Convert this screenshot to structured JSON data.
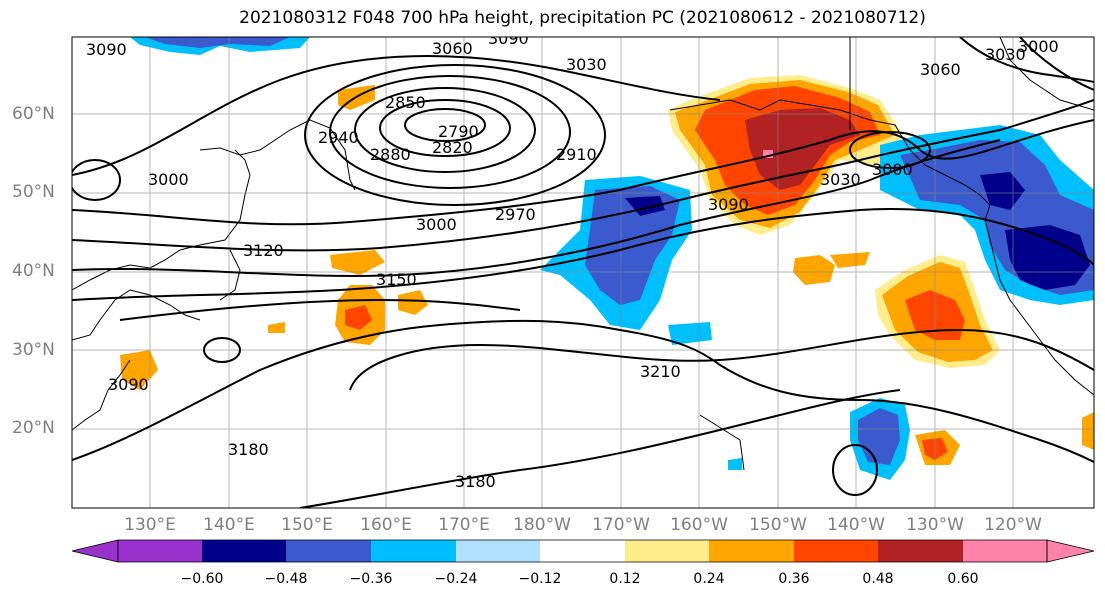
{
  "title": "2021080312 F048 700 hPa height, precipitation PC (2021080612 - 2021080712)",
  "map": {
    "region": "North Pacific",
    "lat_labels": [
      "60°N",
      "50°N",
      "40°N",
      "30°N",
      "20°N"
    ],
    "lon_labels": [
      "130°E",
      "140°E",
      "150°E",
      "160°E",
      "170°E",
      "180°W",
      "170°W",
      "160°W",
      "150°W",
      "140°W",
      "130°W",
      "120°W"
    ],
    "grid": true
  },
  "contours": {
    "variable": "700 hPa height",
    "labels": [
      "3090",
      "3060",
      "3090",
      "3030",
      "3060",
      "3030",
      "3000",
      "3000",
      "2850",
      "2790",
      "2820",
      "2940",
      "2880",
      "2910",
      "3000",
      "2970",
      "3090",
      "3030",
      "3000",
      "3120",
      "3150",
      "3090",
      "3210",
      "3180",
      "3180"
    ]
  },
  "colorbar": {
    "tick_labels": [
      "−0.60",
      "−0.48",
      "−0.36",
      "−0.24",
      "−0.12",
      "0.12",
      "0.24",
      "0.36",
      "0.48",
      "0.60"
    ],
    "colors": [
      "#9932cc",
      "#00008b",
      "#3a5acd",
      "#00bfff",
      "#b0e2ff",
      "#ffffff",
      "#ffec8b",
      "#ffa500",
      "#ff4500",
      "#b22222",
      "#ff82ab"
    ]
  }
}
